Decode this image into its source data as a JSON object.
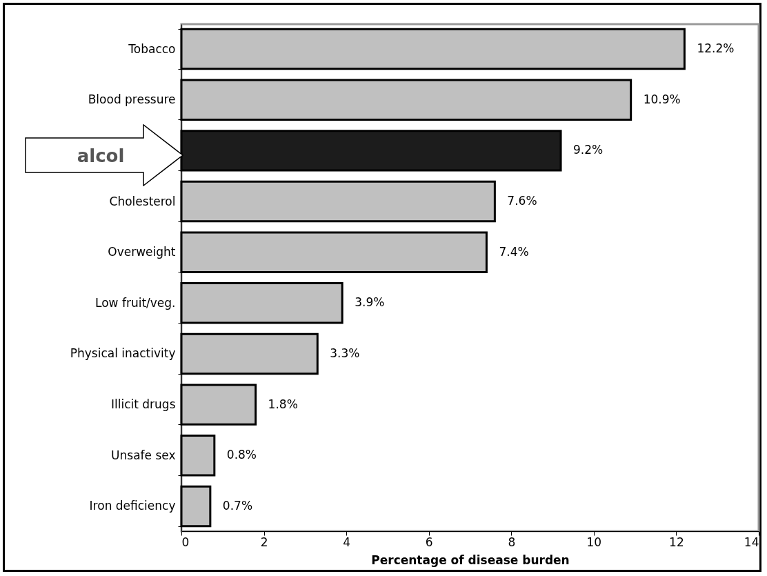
{
  "chart_data": {
    "type": "bar",
    "orientation": "horizontal",
    "xlabel": "Percentage of disease burden",
    "categories": [
      "Tobacco",
      "Blood pressure",
      null,
      "Cholesterol",
      "Overweight",
      "Low fruit/veg.",
      "Physical inactivity",
      "Illicit drugs",
      "Unsafe sex",
      "Iron deficiency"
    ],
    "values": [
      12.2,
      10.9,
      9.2,
      7.6,
      7.4,
      3.9,
      3.3,
      1.8,
      0.8,
      0.7
    ],
    "value_labels": [
      "12.2%",
      "10.9%",
      "9.2%",
      "7.6%",
      "7.4%",
      "3.9%",
      "3.3%",
      "1.8%",
      "0.8%",
      "0.7%"
    ],
    "colors": [
      "#c0c0c0",
      "#c0c0c0",
      "#1c1c1c",
      "#c0c0c0",
      "#c0c0c0",
      "#c0c0c0",
      "#c0c0c0",
      "#c0c0c0",
      "#c0c0c0",
      "#c0c0c0"
    ],
    "xlim": [
      0,
      14
    ],
    "xticks": [
      0,
      2,
      4,
      6,
      8,
      10,
      12,
      14
    ],
    "grid": false,
    "annotations": [
      "alcol"
    ]
  }
}
